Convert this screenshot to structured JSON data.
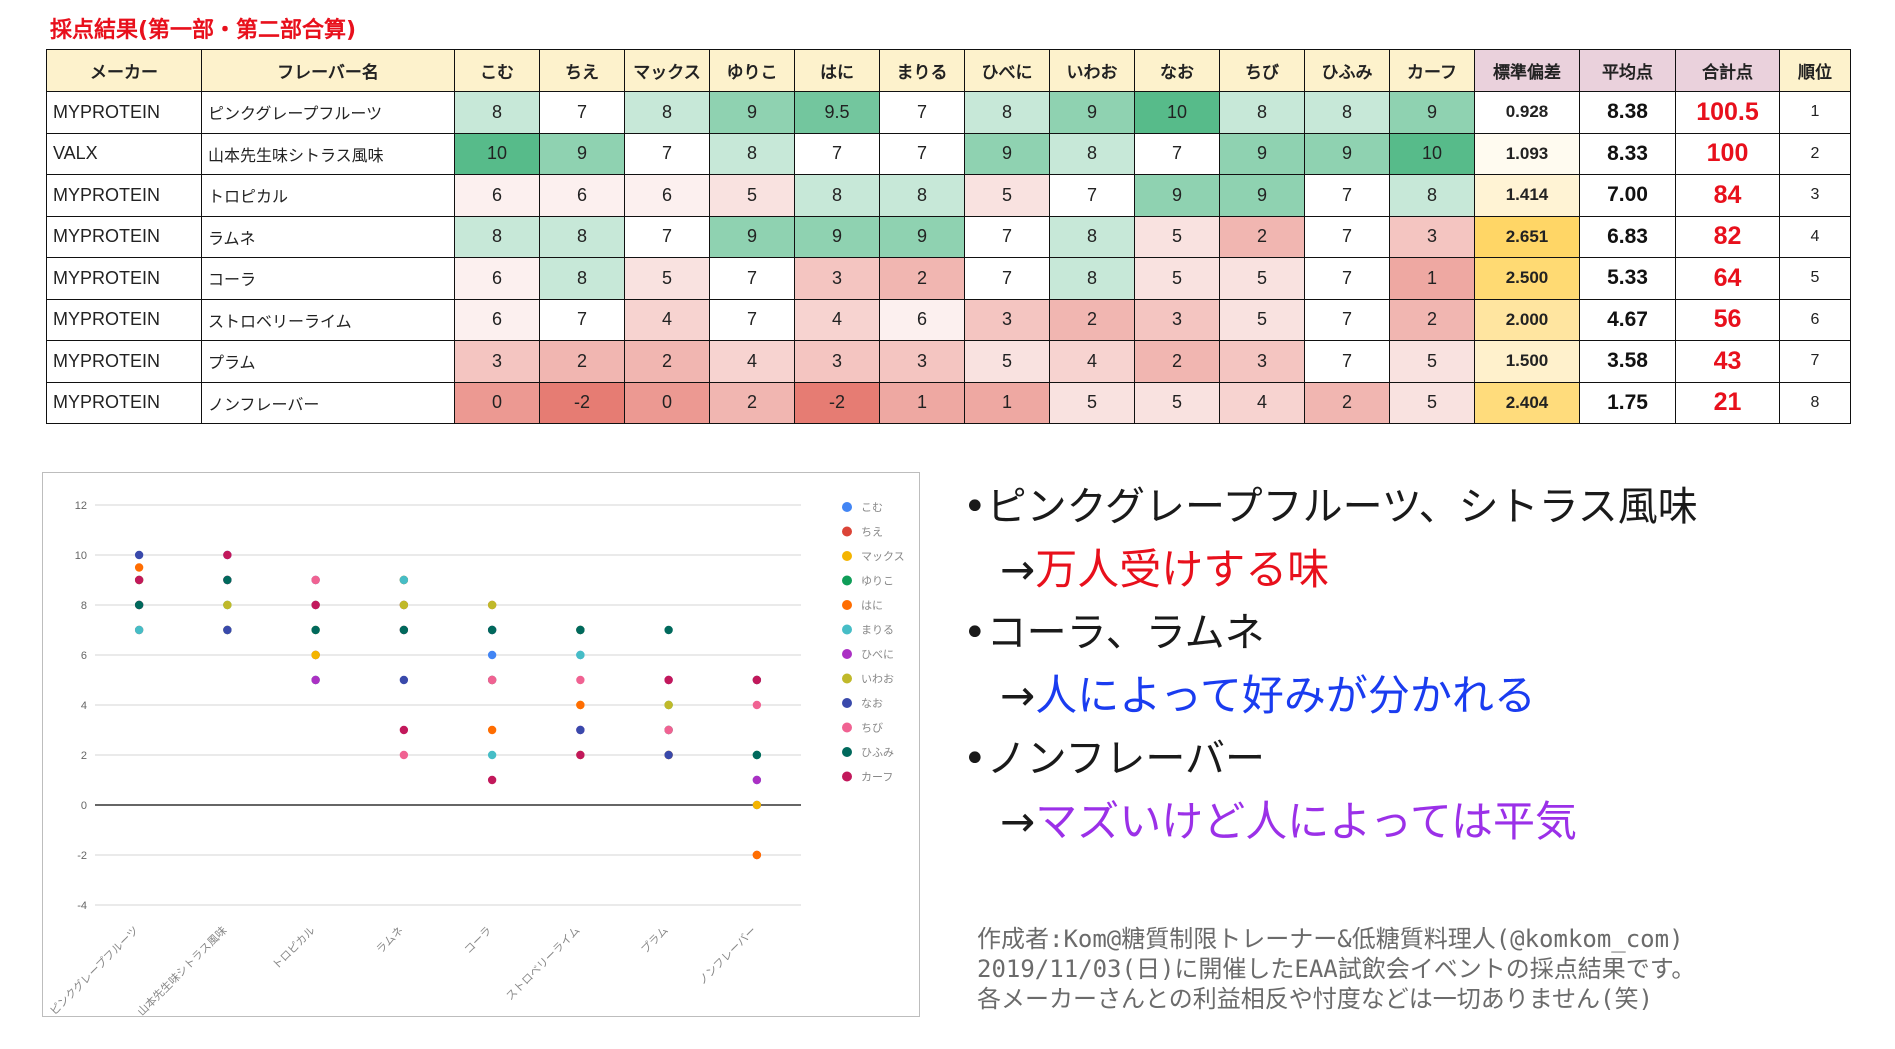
{
  "title": "採点結果(第一部・第二部合算)",
  "table": {
    "headers": [
      "メーカー",
      "フレーバー名",
      "こむ",
      "ちえ",
      "マックス",
      "ゆりこ",
      "はに",
      "まりる",
      "ひべに",
      "いわお",
      "なお",
      "ちび",
      "ひふみ",
      "カーフ",
      "標準偏差",
      "平均点",
      "合計点",
      "順位"
    ],
    "rows": [
      {
        "maker": "MYPROTEIN",
        "flavor": "ピンクグレープフルーツ",
        "scores": [
          "8",
          "7",
          "8",
          "9",
          "9.5",
          "7",
          "8",
          "9",
          "10",
          "8",
          "8",
          "9"
        ],
        "sd": "0.928",
        "avg": "8.38",
        "total": "100.5",
        "rank": "1"
      },
      {
        "maker": "VALX",
        "flavor": "山本先生味シトラス風味",
        "scores": [
          "10",
          "9",
          "7",
          "8",
          "7",
          "7",
          "9",
          "8",
          "7",
          "9",
          "9",
          "10"
        ],
        "sd": "1.093",
        "avg": "8.33",
        "total": "100",
        "rank": "2"
      },
      {
        "maker": "MYPROTEIN",
        "flavor": "トロピカル",
        "scores": [
          "6",
          "6",
          "6",
          "5",
          "8",
          "8",
          "5",
          "7",
          "9",
          "9",
          "7",
          "8"
        ],
        "sd": "1.414",
        "avg": "7.00",
        "total": "84",
        "rank": "3"
      },
      {
        "maker": "MYPROTEIN",
        "flavor": "ラムネ",
        "scores": [
          "8",
          "8",
          "7",
          "9",
          "9",
          "9",
          "7",
          "8",
          "5",
          "2",
          "7",
          "3"
        ],
        "sd": "2.651",
        "avg": "6.83",
        "total": "82",
        "rank": "4"
      },
      {
        "maker": "MYPROTEIN",
        "flavor": "コーラ",
        "scores": [
          "6",
          "8",
          "5",
          "7",
          "3",
          "2",
          "7",
          "8",
          "5",
          "5",
          "7",
          "1"
        ],
        "sd": "2.500",
        "avg": "5.33",
        "total": "64",
        "rank": "5"
      },
      {
        "maker": "MYPROTEIN",
        "flavor": "ストロベリーライム",
        "scores": [
          "6",
          "7",
          "4",
          "7",
          "4",
          "6",
          "3",
          "2",
          "3",
          "5",
          "7",
          "2"
        ],
        "sd": "2.000",
        "avg": "4.67",
        "total": "56",
        "rank": "6"
      },
      {
        "maker": "MYPROTEIN",
        "flavor": "プラム",
        "scores": [
          "3",
          "2",
          "2",
          "4",
          "3",
          "3",
          "5",
          "4",
          "2",
          "3",
          "7",
          "5"
        ],
        "sd": "1.500",
        "avg": "3.58",
        "total": "43",
        "rank": "7"
      },
      {
        "maker": "MYPROTEIN",
        "flavor": "ノンフレーバー",
        "scores": [
          "0",
          "-2",
          "0",
          "2",
          "-2",
          "1",
          "1",
          "5",
          "5",
          "4",
          "2",
          "5"
        ],
        "sd": "2.404",
        "avg": "1.75",
        "total": "21",
        "rank": "8"
      }
    ]
  },
  "chart_data": {
    "type": "scatter",
    "categories": [
      "ピンクグレープフルーツ",
      "山本先生味シトラス風味",
      "トロピカル",
      "ラムネ",
      "コーラ",
      "ストロベリーライム",
      "プラム",
      "ノンフレーバー"
    ],
    "series": [
      {
        "name": "こむ",
        "color": "#4285f4",
        "values": [
          8,
          10,
          6,
          8,
          6,
          6,
          3,
          0
        ]
      },
      {
        "name": "ちえ",
        "color": "#db4437",
        "values": [
          7,
          9,
          6,
          8,
          8,
          7,
          2,
          -2
        ]
      },
      {
        "name": "マックス",
        "color": "#f4b400",
        "values": [
          8,
          7,
          6,
          7,
          5,
          4,
          2,
          0
        ]
      },
      {
        "name": "ゆりこ",
        "color": "#0f9d58",
        "values": [
          9,
          8,
          5,
          9,
          7,
          7,
          4,
          2
        ]
      },
      {
        "name": "はに",
        "color": "#ff6d01",
        "values": [
          9.5,
          7,
          8,
          9,
          3,
          4,
          3,
          -2
        ]
      },
      {
        "name": "まりる",
        "color": "#46bdc6",
        "values": [
          7,
          7,
          8,
          9,
          2,
          6,
          3,
          1
        ]
      },
      {
        "name": "ひべに",
        "color": "#ab30c4",
        "values": [
          8,
          9,
          5,
          7,
          7,
          3,
          5,
          1
        ]
      },
      {
        "name": "いわお",
        "color": "#c0b92a",
        "values": [
          9,
          8,
          7,
          8,
          8,
          2,
          4,
          5
        ]
      },
      {
        "name": "なお",
        "color": "#3949ab",
        "values": [
          10,
          7,
          9,
          5,
          5,
          3,
          2,
          5
        ]
      },
      {
        "name": "ちび",
        "color": "#f06292",
        "values": [
          8,
          9,
          9,
          2,
          5,
          5,
          3,
          4
        ]
      },
      {
        "name": "ひふみ",
        "color": "#00695c",
        "values": [
          8,
          9,
          7,
          7,
          7,
          7,
          7,
          2
        ]
      },
      {
        "name": "カーフ",
        "color": "#c2185b",
        "values": [
          9,
          10,
          8,
          3,
          1,
          2,
          5,
          5
        ]
      }
    ],
    "yticks": [
      "12",
      "10",
      "8",
      "6",
      "4",
      "2",
      "0",
      "-2",
      "-4"
    ],
    "ylim": [
      -4,
      12
    ],
    "grid": true,
    "legend": "right"
  },
  "notes": {
    "item1": "•ピンクグレープフルーツ、シトラス風味",
    "item1_result": "→万人受けする味",
    "item2": "•コーラ、ラムネ",
    "item2_result": "→人によって好みが分かれる",
    "item3": "•ノンフレーバー",
    "item3_result": "→マズいけど人によっては平気",
    "colors": {
      "item1": "#e8101c",
      "item2": "#1a3cf0",
      "item3": "#9b30e8"
    }
  },
  "credit": {
    "line1": "作成者:Kom@糖質制限トレーナー&低糖質料理人(@komkom_com)",
    "line2": "2019/11/03(日)に開催したEAA試飲会イベントの採点結果です。",
    "line3": "各メーカーさんとの利益相反や忖度などは一切ありません(笑)"
  }
}
